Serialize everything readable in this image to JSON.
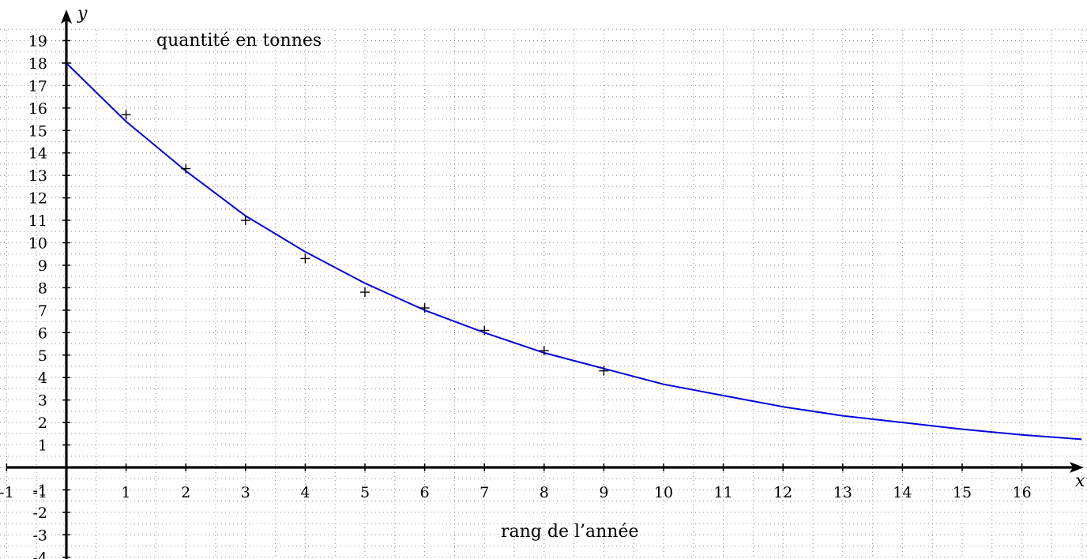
{
  "chart_data": {
    "type": "scatter",
    "title": "",
    "xlabel": "x",
    "ylabel": "y",
    "xlim": [
      -1,
      17
    ],
    "ylim": [
      -4,
      19
    ],
    "grid": true,
    "x_ticks": [
      "-1",
      "1",
      "2",
      "3",
      "4",
      "5",
      "6",
      "7",
      "8",
      "9",
      "10",
      "11",
      "12",
      "13",
      "14",
      "15",
      "16"
    ],
    "y_ticks": [
      "-4",
      "-3",
      "-2",
      "-1",
      "1",
      "2",
      "3",
      "4",
      "5",
      "6",
      "7",
      "8",
      "9",
      "10",
      "11",
      "12",
      "13",
      "14",
      "15",
      "16",
      "17",
      "18",
      "19"
    ],
    "annotations": {
      "y_axis_note": "quantité en tonnes",
      "x_axis_note": "rang de l’année"
    },
    "series": [
      {
        "kind": "points",
        "marker": "+",
        "x": [
          0,
          1,
          2,
          3,
          4,
          5,
          6,
          7,
          8,
          9
        ],
        "y": [
          18.0,
          15.7,
          13.3,
          11.0,
          9.3,
          7.8,
          7.1,
          6.1,
          5.2,
          4.3
        ],
        "color": "#000000"
      },
      {
        "kind": "curve",
        "x": [
          0,
          1,
          2,
          3,
          4,
          5,
          6,
          7,
          8,
          9,
          10,
          11,
          12,
          13,
          14,
          15,
          16,
          17
        ],
        "y": [
          18.0,
          15.4,
          13.2,
          11.2,
          9.6,
          8.2,
          7.0,
          6.0,
          5.1,
          4.4,
          3.7,
          3.2,
          2.7,
          2.3,
          2.0,
          1.7,
          1.45,
          1.25
        ],
        "color": "#0000dd"
      }
    ]
  }
}
